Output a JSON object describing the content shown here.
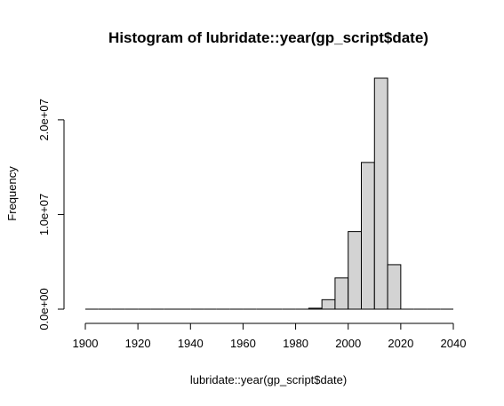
{
  "chart_data": {
    "type": "histogram",
    "title": "Histogram of lubridate::year(gp_script$date)",
    "xlabel": "lubridate::year(gp_script$date)",
    "ylabel": "Frequency",
    "bin_width": 5,
    "bins": [
      {
        "start": 1900,
        "end": 1905,
        "count": 0
      },
      {
        "start": 1905,
        "end": 1910,
        "count": 0
      },
      {
        "start": 1910,
        "end": 1915,
        "count": 0
      },
      {
        "start": 1915,
        "end": 1920,
        "count": 0
      },
      {
        "start": 1920,
        "end": 1925,
        "count": 0
      },
      {
        "start": 1925,
        "end": 1930,
        "count": 0
      },
      {
        "start": 1930,
        "end": 1935,
        "count": 0
      },
      {
        "start": 1935,
        "end": 1940,
        "count": 0
      },
      {
        "start": 1940,
        "end": 1945,
        "count": 0
      },
      {
        "start": 1945,
        "end": 1950,
        "count": 0
      },
      {
        "start": 1950,
        "end": 1955,
        "count": 0
      },
      {
        "start": 1955,
        "end": 1960,
        "count": 0
      },
      {
        "start": 1960,
        "end": 1965,
        "count": 0
      },
      {
        "start": 1965,
        "end": 1970,
        "count": 0
      },
      {
        "start": 1970,
        "end": 1975,
        "count": 0
      },
      {
        "start": 1975,
        "end": 1980,
        "count": 0
      },
      {
        "start": 1980,
        "end": 1985,
        "count": 0
      },
      {
        "start": 1985,
        "end": 1990,
        "count": 100000
      },
      {
        "start": 1990,
        "end": 1995,
        "count": 1000000
      },
      {
        "start": 1995,
        "end": 2000,
        "count": 3300000
      },
      {
        "start": 2000,
        "end": 2005,
        "count": 8200000
      },
      {
        "start": 2005,
        "end": 2010,
        "count": 15500000
      },
      {
        "start": 2010,
        "end": 2015,
        "count": 24400000
      },
      {
        "start": 2015,
        "end": 2020,
        "count": 4700000
      },
      {
        "start": 2020,
        "end": 2025,
        "count": 0
      },
      {
        "start": 2025,
        "end": 2030,
        "count": 0
      },
      {
        "start": 2030,
        "end": 2035,
        "count": 0
      },
      {
        "start": 2035,
        "end": 2040,
        "count": 0
      }
    ],
    "xlim": [
      1900,
      2040
    ],
    "ylim": [
      0,
      24400000
    ],
    "x_ticks": [
      1900,
      1920,
      1940,
      1960,
      1980,
      2000,
      2020,
      2040
    ],
    "x_tick_labels": [
      "1900",
      "1920",
      "1940",
      "1960",
      "1980",
      "2000",
      "2020",
      "2040"
    ],
    "y_ticks": [
      0,
      10000000,
      20000000
    ],
    "y_tick_labels": [
      "0.0e+00",
      "1.0e+07",
      "2.0e+07"
    ],
    "grid": false,
    "legend": "none",
    "bar_color": "#d3d3d3",
    "edge_color": "#000000"
  }
}
